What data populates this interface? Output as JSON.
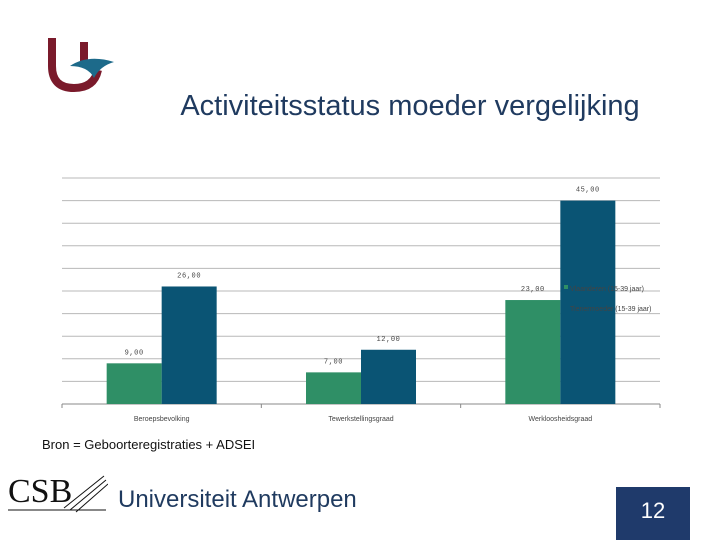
{
  "title": "Activiteitsstatus moeder vergelijking",
  "source": "Bron = Geboorteregistraties + ADSEI",
  "footer": {
    "csb": "CSB",
    "university": "Universiteit Antwerpen",
    "page_number": "12"
  },
  "colors": {
    "series_1": "#2f8f66",
    "series_2": "#0a5474",
    "title": "#1f3a5f",
    "footer_box": "#1f3a6b",
    "logo": "#7a1a2b"
  },
  "chart_data": {
    "type": "bar",
    "categories": [
      "Beroepsbevolking",
      "Tewerkstellingsgraad",
      "Werkloosheidsgraad"
    ],
    "series": [
      {
        "name": "Vlaanderen (15-39 jaar)",
        "values": [
          9.0,
          7.0,
          23.0
        ],
        "labels": [
          "9,00",
          "7,00",
          "23,00"
        ]
      },
      {
        "name": "Tienermoeder (15-39 jaar)",
        "values": [
          26.0,
          12.0,
          45.0
        ],
        "labels": [
          "26,00",
          "12,00",
          "45,00"
        ]
      }
    ],
    "ylim": [
      0,
      50
    ],
    "grid": true,
    "legend_position": "right"
  }
}
